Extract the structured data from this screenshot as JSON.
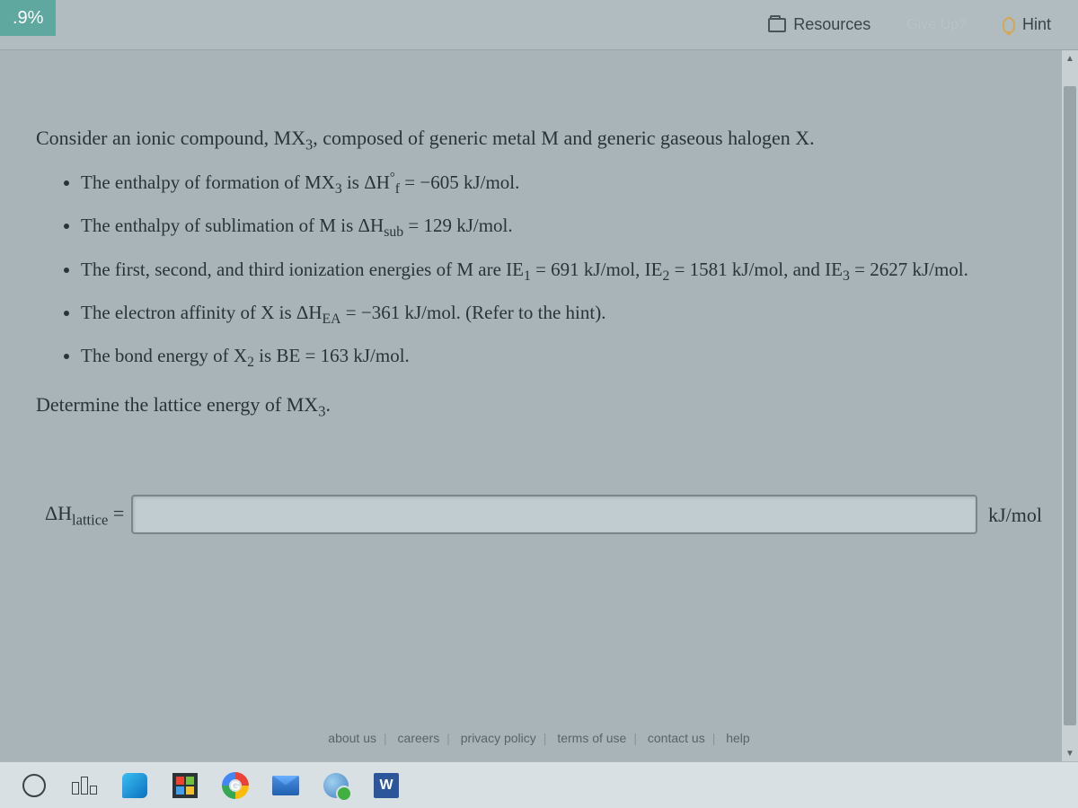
{
  "topbar": {
    "percent": ".9%",
    "resources": "Resources",
    "giveup": "Give Up?",
    "hint": "Hint"
  },
  "problem": {
    "intro_pre": "Consider an ionic compound, MX",
    "intro_sub": "3",
    "intro_post": ", composed of generic metal M and generic gaseous halogen X.",
    "b1_pre": "The enthalpy of formation of MX",
    "b1_sub": "3",
    "b1_mid": " is ΔH",
    "b1_sup": "°",
    "b1_subf": "f",
    "b1_post": " = −605 kJ/mol.",
    "b2_pre": "The enthalpy of sublimation of M is ΔH",
    "b2_sub": "sub",
    "b2_post": " = 129 kJ/mol.",
    "b3_pre": "The first, second, and third ionization energies of M are IE",
    "b3_s1": "1",
    "b3_m1": " = 691 kJ/mol, IE",
    "b3_s2": "2",
    "b3_m2": " = 1581 kJ/mol, and IE",
    "b3_s3": "3",
    "b3_post": " = 2627 kJ/mol.",
    "b4_pre": "The electron affinity of X is ΔH",
    "b4_sub": "EA",
    "b4_post": " = −361 kJ/mol. (Refer to the hint).",
    "b5_pre": "The bond energy of X",
    "b5_sub": "2",
    "b5_post": " is BE = 163 kJ/mol.",
    "question_pre": "Determine the lattice energy of MX",
    "question_sub": "3",
    "question_post": "."
  },
  "answer": {
    "label_pre": "ΔH",
    "label_sub": "lattice",
    "label_eq": " =",
    "unit": "kJ/mol",
    "value": ""
  },
  "footer": {
    "about": "about us",
    "careers": "careers",
    "privacy": "privacy policy",
    "terms": "terms of use",
    "contact": "contact us",
    "help": "help"
  },
  "taskbar": {
    "word": "W",
    "g": "G"
  },
  "colors": {
    "bg": "#a8b4b8",
    "text": "#2a3438",
    "badge": "#5fa8a0"
  }
}
